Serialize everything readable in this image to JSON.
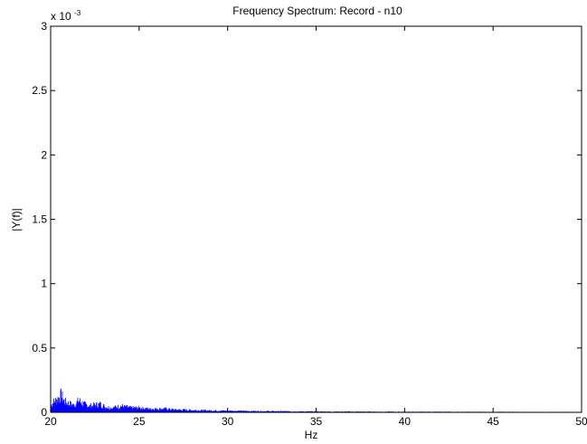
{
  "chart_data": {
    "type": "area",
    "title": "Frequency Spectrum: Record - n10",
    "xlabel": "Hz",
    "ylabel": "|Y(f)|",
    "xlim": [
      20,
      50
    ],
    "ylim": [
      0,
      0.003
    ],
    "y_exponent_label": "x 10",
    "y_exponent_power": "-3",
    "x_ticks": [
      20,
      25,
      30,
      35,
      40,
      45,
      50
    ],
    "x_tick_labels": [
      "20",
      "25",
      "30",
      "35",
      "40",
      "45",
      "50"
    ],
    "y_ticks": [
      0,
      0.0005,
      0.001,
      0.0015,
      0.002,
      0.0025,
      0.003
    ],
    "y_tick_labels": [
      "0",
      "0.5",
      "1",
      "1.5",
      "2",
      "2.5",
      "3"
    ],
    "grid": false,
    "series": [
      {
        "color": "#0000ff",
        "envelope_x": [
          20.0,
          20.2,
          20.4,
          20.6,
          20.8,
          21.0,
          21.3,
          21.6,
          21.9,
          22.2,
          22.5,
          22.8,
          23.1,
          23.5,
          24.0,
          24.5,
          25.0,
          25.5,
          26.0,
          26.5,
          27.0,
          27.5,
          28.0,
          29.0,
          30.0,
          31.0,
          32.0,
          33.0,
          34.0,
          35.0,
          36.0,
          37.0,
          38.0,
          39.0,
          40.0,
          41.0,
          42.0,
          43.0,
          44.0,
          45.0,
          46.0,
          47.0,
          48.0,
          49.0,
          50.0
        ],
        "envelope_y": [
          8e-05,
          0.00012,
          0.00015,
          0.00019,
          0.00012,
          0.0001,
          8e-05,
          0.00013,
          9e-05,
          7e-05,
          8e-05,
          9e-05,
          6e-05,
          5e-05,
          7e-05,
          5e-05,
          5e-05,
          4e-05,
          4e-05,
          4e-05,
          3e-05,
          2.8e-05,
          2.5e-05,
          2e-05,
          1.8e-05,
          1.5e-05,
          1.3e-05,
          1.2e-05,
          1e-05,
          9e-06,
          8e-06,
          8e-06,
          7e-06,
          7e-06,
          6e-06,
          6e-06,
          6e-06,
          5e-06,
          5e-06,
          5e-06,
          5e-06,
          4e-06,
          4e-06,
          4e-06,
          4e-06
        ]
      }
    ]
  }
}
